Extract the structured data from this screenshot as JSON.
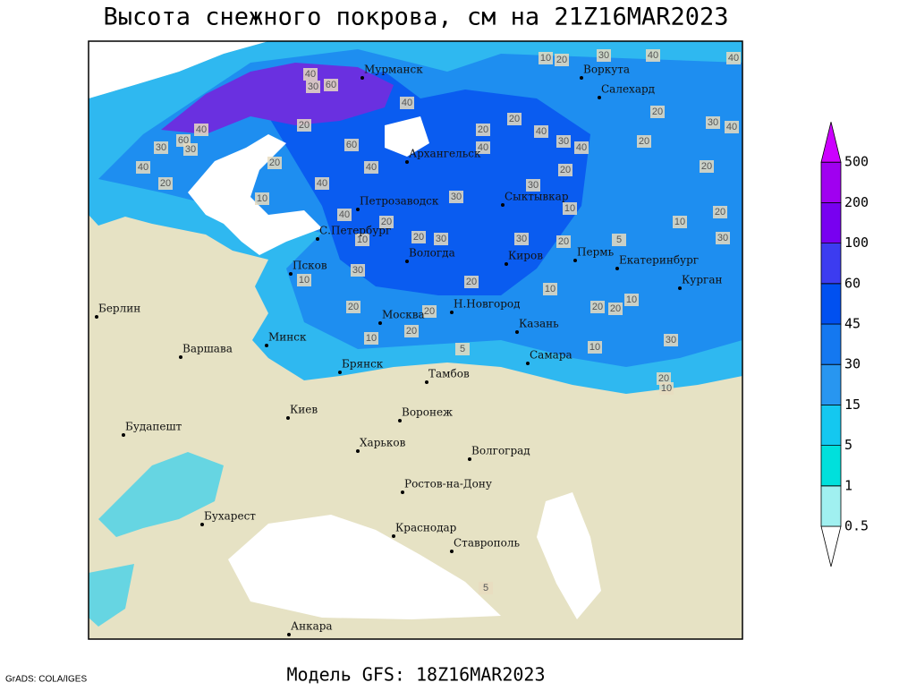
{
  "title": "Высота снежного покрова, см на 21Z16MAR2023",
  "footer": "Модель GFS: 18Z16MAR2023",
  "credit": "GrADS: COLA/IGES",
  "cities": [
    "Мурманск",
    "Воркута",
    "Салехард",
    "Архангельск",
    "Сыктывкар",
    "Петрозаводск",
    "С.Петербург",
    "Вологда",
    "Киров",
    "Пермь",
    "Екатеринбург",
    "Курган",
    "Псков",
    "Н.Новгород",
    "Казань",
    "Москва",
    "Минск",
    "Берлин",
    "Варшава",
    "Брянск",
    "Тамбов",
    "Самара",
    "Киев",
    "Воронеж",
    "Харьков",
    "Будапешт",
    "Волгоград",
    "Ростов-на-Дону",
    "Бухарест",
    "Краснодар",
    "Ставрополь",
    "Анкара"
  ],
  "legend": {
    "levels": [
      0.5,
      1,
      5,
      15,
      30,
      45,
      60,
      100,
      200,
      500
    ],
    "colors": [
      "#ffffff",
      "#a0f0f0",
      "#00e0dc",
      "#14c8f0",
      "#2896f0",
      "#1478f0",
      "#0050f0",
      "#3c3cf0",
      "#7800f0",
      "#a000f0",
      "#cc00ff"
    ]
  },
  "contour_labels": [
    40,
    60,
    30,
    40,
    20,
    40,
    60,
    30,
    30,
    40,
    20,
    20,
    60,
    40,
    40,
    10,
    40,
    20,
    10,
    20,
    30,
    30,
    20,
    5,
    30,
    20,
    10,
    10,
    20,
    30,
    40,
    40,
    20,
    30,
    40,
    40,
    30,
    40,
    20,
    20,
    20,
    40,
    20,
    30,
    30,
    10,
    20,
    30,
    10,
    20,
    20,
    20,
    10,
    20,
    10,
    20,
    30,
    10,
    10,
    20,
    5,
    20,
    10,
    5
  ]
}
